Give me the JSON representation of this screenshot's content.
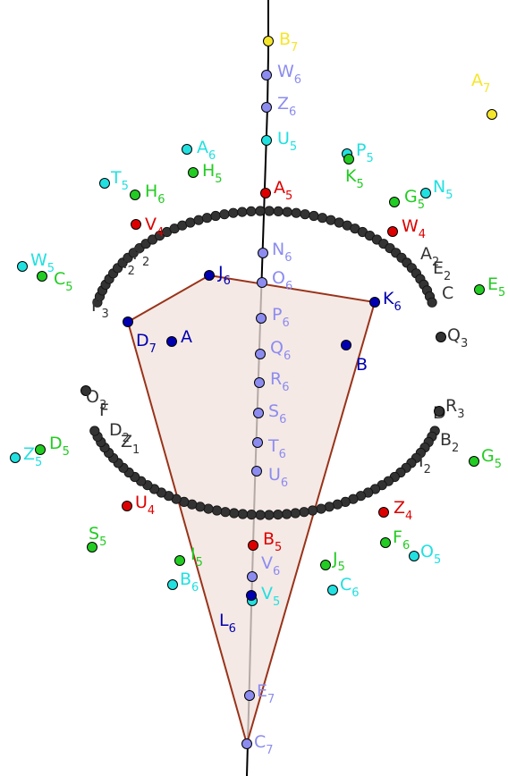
{
  "colors": {
    "axis": "#000000",
    "polygon_stroke": "#99331a",
    "polygon_fill": "#f2e2dc",
    "dark_point": "#333333",
    "lavender": "#8c8cf0",
    "blue": "#0000b0",
    "red": "#dd0000",
    "green": "#22cc22",
    "cyan": "#22e0e0",
    "yellow": "#f5e62c"
  },
  "points": [
    {
      "id": "B7",
      "label": "B",
      "sub": "7",
      "color": "yellow"
    },
    {
      "id": "A7",
      "label": "A",
      "sub": "7",
      "color": "yellow"
    },
    {
      "id": "W6",
      "label": "W",
      "sub": "6",
      "color": "lavender"
    },
    {
      "id": "Z6",
      "label": "Z",
      "sub": "6",
      "color": "lavender"
    },
    {
      "id": "U5",
      "label": "U",
      "sub": "5",
      "color": "cyan"
    },
    {
      "id": "A6",
      "label": "A",
      "sub": "6",
      "color": "cyan"
    },
    {
      "id": "P5",
      "label": "P",
      "sub": "5",
      "color": "cyan"
    },
    {
      "id": "K5",
      "label": "K",
      "sub": "5",
      "color": "green"
    },
    {
      "id": "T5",
      "label": "T",
      "sub": "5",
      "color": "cyan"
    },
    {
      "id": "H5",
      "label": "H",
      "sub": "5",
      "color": "green"
    },
    {
      "id": "H6",
      "label": "H",
      "sub": "6",
      "color": "green"
    },
    {
      "id": "A5",
      "label": "A",
      "sub": "5",
      "color": "red"
    },
    {
      "id": "G5",
      "label": "G",
      "sub": "5",
      "color": "green"
    },
    {
      "id": "N5",
      "label": "N",
      "sub": "5",
      "color": "cyan"
    },
    {
      "id": "V4",
      "label": "V",
      "sub": "4",
      "color": "red"
    },
    {
      "id": "W4",
      "label": "W",
      "sub": "4",
      "color": "red"
    },
    {
      "id": "N6",
      "label": "N",
      "sub": "6",
      "color": "lavender"
    },
    {
      "id": "W5",
      "label": "W",
      "sub": "5",
      "color": "cyan"
    },
    {
      "id": "C5",
      "label": "C",
      "sub": "5",
      "color": "green"
    },
    {
      "id": "J6",
      "label": "J",
      "sub": "6",
      "color": "blue"
    },
    {
      "id": "O6",
      "label": "O",
      "sub": "6",
      "color": "lavender"
    },
    {
      "id": "E5",
      "label": "E",
      "sub": "5",
      "color": "green"
    },
    {
      "id": "K6",
      "label": "K",
      "sub": "6",
      "color": "blue"
    },
    {
      "id": "P6",
      "label": "P",
      "sub": "6",
      "color": "lavender"
    },
    {
      "id": "Q3",
      "label": "Q",
      "sub": "3",
      "color": "dark_point"
    },
    {
      "id": "D7",
      "label": "D",
      "sub": "7",
      "color": "blue"
    },
    {
      "id": "Q6",
      "label": "Q",
      "sub": "6",
      "color": "lavender"
    },
    {
      "id": "A",
      "label": "A",
      "sub": "",
      "color": "blue"
    },
    {
      "id": "B",
      "label": "B",
      "sub": "",
      "color": "blue"
    },
    {
      "id": "R6",
      "label": "R",
      "sub": "6",
      "color": "lavender"
    },
    {
      "id": "O3",
      "label": "O",
      "sub": "3",
      "color": "dark_point"
    },
    {
      "id": "R3",
      "label": "R",
      "sub": "3",
      "color": "dark_point"
    },
    {
      "id": "S6",
      "label": "S",
      "sub": "6",
      "color": "lavender"
    },
    {
      "id": "T6",
      "label": "T",
      "sub": "6",
      "color": "lavender"
    },
    {
      "id": "Z5",
      "label": "Z",
      "sub": "5",
      "color": "cyan"
    },
    {
      "id": "D5",
      "label": "D",
      "sub": "5",
      "color": "green"
    },
    {
      "id": "G5b",
      "label": "G",
      "sub": "5",
      "color": "green"
    },
    {
      "id": "U6",
      "label": "U",
      "sub": "6",
      "color": "lavender"
    },
    {
      "id": "U4",
      "label": "U",
      "sub": "4",
      "color": "red"
    },
    {
      "id": "Z4",
      "label": "Z",
      "sub": "4",
      "color": "red"
    },
    {
      "id": "B5",
      "label": "B",
      "sub": "5",
      "color": "red"
    },
    {
      "id": "S5",
      "label": "S",
      "sub": "5",
      "color": "green"
    },
    {
      "id": "F6",
      "label": "F",
      "sub": "6",
      "color": "green"
    },
    {
      "id": "O5",
      "label": "O",
      "sub": "5",
      "color": "cyan"
    },
    {
      "id": "I5",
      "label": "I",
      "sub": "5",
      "color": "green"
    },
    {
      "id": "J5",
      "label": "J",
      "sub": "5",
      "color": "green"
    },
    {
      "id": "V6",
      "label": "V",
      "sub": "6",
      "color": "lavender"
    },
    {
      "id": "B6",
      "label": "B",
      "sub": "6",
      "color": "cyan"
    },
    {
      "id": "C6",
      "label": "C",
      "sub": "6",
      "color": "cyan"
    },
    {
      "id": "V5",
      "label": "V",
      "sub": "5",
      "color": "cyan"
    },
    {
      "id": "L6",
      "label": "L",
      "sub": "6",
      "color": "blue"
    },
    {
      "id": "E7",
      "label": "E",
      "sub": "7",
      "color": "lavender"
    },
    {
      "id": "C7",
      "label": "C",
      "sub": "7",
      "color": "lavender"
    }
  ],
  "arc_labels": {
    "upper": [
      {
        "label": "I",
        "sub": "2"
      },
      {
        "label": "F",
        "sub": "2"
      },
      {
        "label": "P",
        "sub": "3"
      },
      {
        "label": "E",
        "sub": "2"
      },
      {
        "label": "C",
        "sub": ""
      },
      {
        "label": "A",
        "sub": "2"
      }
    ],
    "lower": [
      {
        "label": "F",
        "sub": ""
      },
      {
        "label": "D",
        "sub": "2"
      },
      {
        "label": "Z",
        "sub": "1"
      },
      {
        "label": "D",
        "sub": ""
      },
      {
        "label": "B",
        "sub": "2"
      },
      {
        "label": "I",
        "sub": "2"
      }
    ]
  }
}
